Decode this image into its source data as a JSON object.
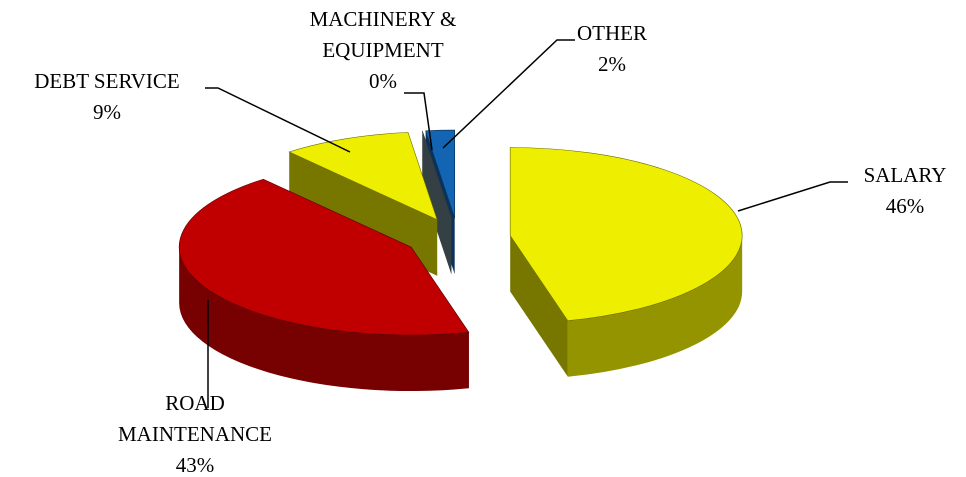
{
  "chart_data": {
    "type": "pie3d",
    "categories": [
      "SALARY",
      "ROAD MAINTENANCE",
      "DEBT SERVICE",
      "MACHINERY & EQUIPMENT",
      "OTHER"
    ],
    "values": [
      46,
      43,
      9,
      0,
      2
    ],
    "value_labels": [
      "46%",
      "43%",
      "9%",
      "0%",
      "2%"
    ],
    "colors": [
      "#eeee00",
      "#c00000",
      "#eeee00",
      "#6a8088",
      "#1464b4"
    ]
  }
}
